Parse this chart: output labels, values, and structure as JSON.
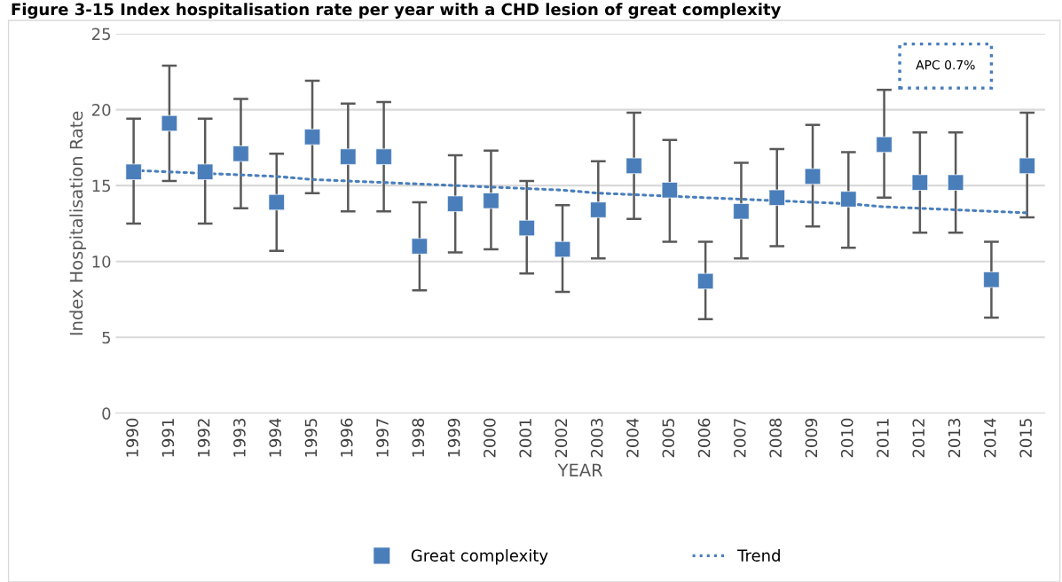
{
  "chart_data": {
    "type": "scatter",
    "title": "Figure 3-15 Index hospitalisation rate per year with a CHD lesion of great complexity",
    "xlabel": "YEAR",
    "ylabel": "Index Hospitalisation Rate",
    "categories": [
      "1990",
      "1991",
      "1992",
      "1993",
      "1994",
      "1995",
      "1996",
      "1997",
      "1998",
      "1999",
      "2000",
      "2001",
      "2002",
      "2003",
      "2004",
      "2005",
      "2006",
      "2007",
      "2008",
      "2009",
      "2010",
      "2011",
      "2012",
      "2013",
      "2014",
      "2015"
    ],
    "series": [
      {
        "name": "Great complexity",
        "color": "#4a7ebb",
        "marker": "square",
        "values": [
          15.9,
          19.1,
          15.9,
          17.1,
          13.9,
          18.2,
          16.9,
          16.9,
          11.0,
          13.8,
          14.0,
          12.2,
          10.8,
          13.4,
          16.3,
          14.7,
          8.7,
          13.3,
          14.2,
          15.6,
          14.1,
          17.7,
          15.2,
          15.2,
          8.8,
          16.3
        ],
        "errors": [
          [
            12.5,
            19.4
          ],
          [
            15.3,
            22.9
          ],
          [
            12.5,
            19.4
          ],
          [
            13.5,
            20.7
          ],
          [
            10.7,
            17.1
          ],
          [
            14.5,
            21.9
          ],
          [
            13.3,
            20.4
          ],
          [
            13.3,
            20.5
          ],
          [
            8.1,
            13.9
          ],
          [
            10.6,
            17.0
          ],
          [
            10.8,
            17.3
          ],
          [
            9.2,
            15.3
          ],
          [
            8.0,
            13.7
          ],
          [
            10.2,
            16.6
          ],
          [
            12.8,
            19.8
          ],
          [
            11.3,
            18.0
          ],
          [
            6.2,
            11.3
          ],
          [
            10.2,
            16.5
          ],
          [
            11.0,
            17.4
          ],
          [
            12.3,
            19.0
          ],
          [
            10.9,
            17.2
          ],
          [
            14.2,
            21.3
          ],
          [
            11.9,
            18.5
          ],
          [
            11.9,
            18.5
          ],
          [
            6.3,
            11.3
          ],
          [
            12.9,
            19.8
          ]
        ]
      },
      {
        "name": "Trend",
        "type": "line",
        "color": "#4a7ebb",
        "line_style": "dotted",
        "marker": "none",
        "values": [
          16.0,
          15.9,
          15.8,
          15.7,
          15.6,
          15.4,
          15.3,
          15.2,
          15.1,
          15.0,
          14.9,
          14.8,
          14.7,
          14.5,
          14.4,
          14.3,
          14.2,
          14.1,
          14.0,
          13.9,
          13.8,
          13.6,
          13.5,
          13.4,
          13.3,
          13.2
        ]
      }
    ],
    "annotations": [
      "APC 0.7%"
    ],
    "ylim": [
      0,
      25
    ],
    "yticks": [
      0,
      5,
      10,
      15,
      20,
      25
    ],
    "grid": "y",
    "legend": "bottom"
  }
}
